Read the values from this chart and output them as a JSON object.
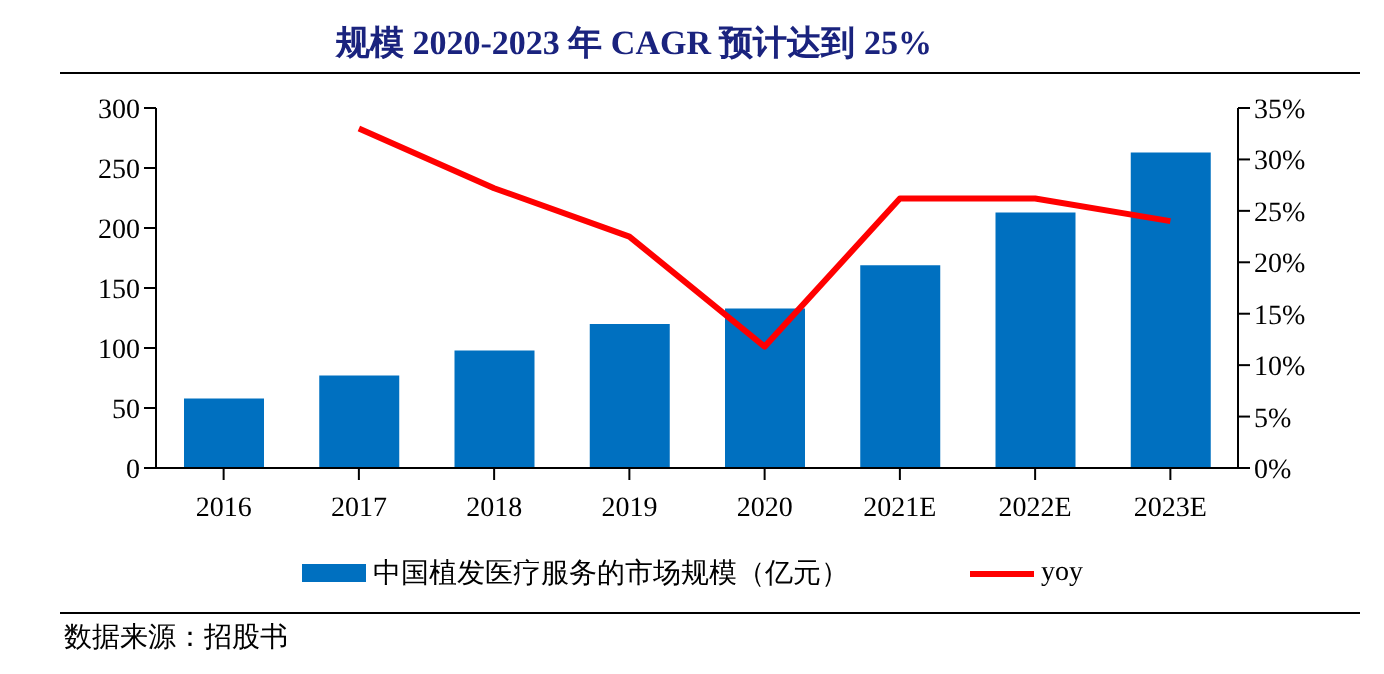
{
  "chart_data": {
    "type": "bar",
    "title": "规模 2020-2023 年 CAGR 预计达到 25%",
    "categories": [
      "2016",
      "2017",
      "2018",
      "2019",
      "2020",
      "2021E",
      "2022E",
      "2023E"
    ],
    "series": [
      {
        "name": "中国植发医疗服务的市场规模（亿元）",
        "color": "#0070c0",
        "values": [
          58,
          77,
          98,
          120,
          133,
          169,
          213,
          263
        ]
      },
      {
        "name": "yoy",
        "type": "line",
        "axis": "y2",
        "color": "#ff0000",
        "values": [
          null,
          33,
          27.2,
          22.5,
          11.8,
          26.2,
          26.2,
          24
        ]
      }
    ],
    "ylim": [
      0,
      300
    ],
    "yticks": [
      0,
      50,
      100,
      150,
      200,
      250,
      300
    ],
    "y2lim": [
      0,
      35
    ],
    "y2ticks": [
      {
        "value": 0,
        "label": "0%"
      },
      {
        "value": 5,
        "label": "5%"
      },
      {
        "value": 10,
        "label": "10%"
      },
      {
        "value": 15,
        "label": "15%"
      },
      {
        "value": 20,
        "label": "20%"
      },
      {
        "value": 25,
        "label": "25%"
      },
      {
        "value": 30,
        "label": "30%"
      },
      {
        "value": 35,
        "label": "35%"
      }
    ],
    "legend": "bottom",
    "marker": "none",
    "grid": false,
    "annotations": [
      "数据来源：招股书"
    ]
  }
}
